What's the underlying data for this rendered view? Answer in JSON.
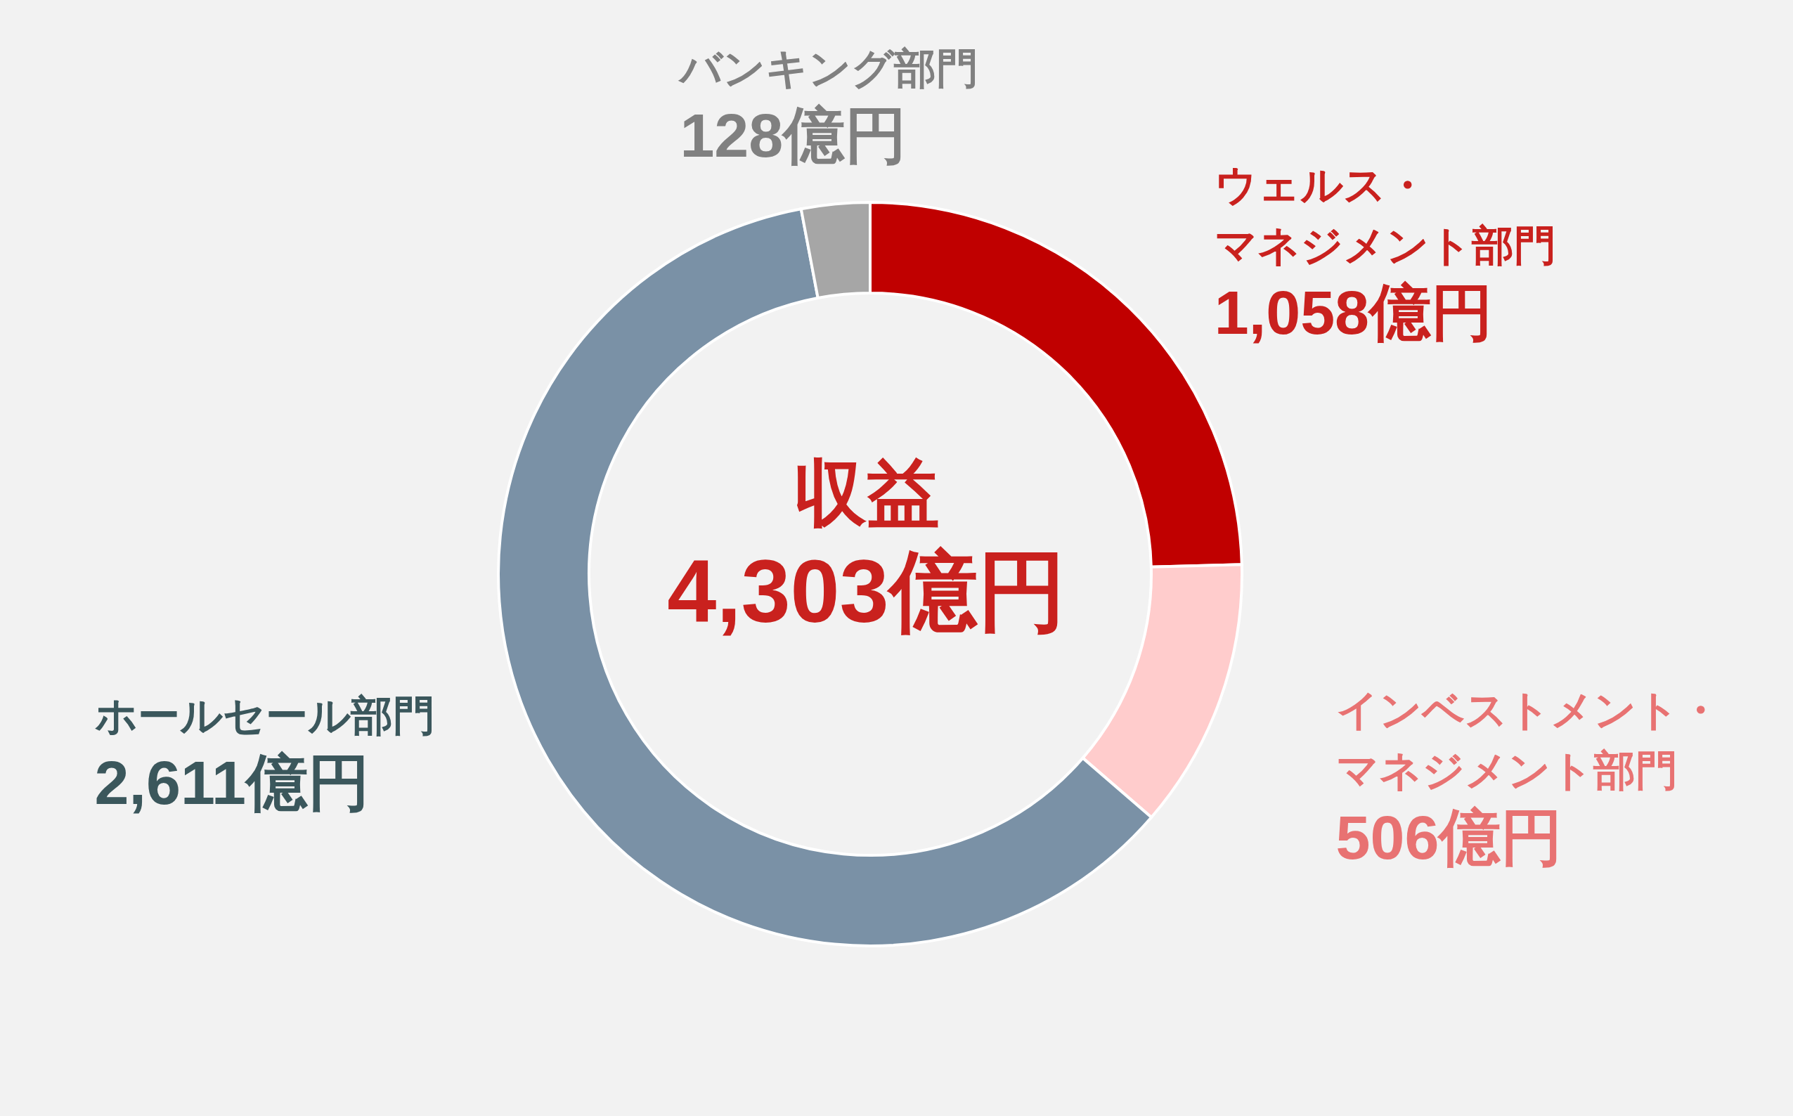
{
  "chart_data": {
    "type": "donut",
    "title": "収益",
    "subtitle": "4,303億円",
    "categories": [
      "ウェルス・マネジメント部門",
      "インベストメント・マネジメント部門",
      "ホールセール部門",
      "バンキング部門"
    ],
    "values": [
      1058,
      506,
      2611,
      128
    ],
    "colors": [
      "#c00000",
      "#ffcccc",
      "#7a91a6",
      "#a6a6a6"
    ],
    "value_labels": [
      "1,058億円",
      "506億円",
      "2,611億円",
      "128億円"
    ]
  }
}
